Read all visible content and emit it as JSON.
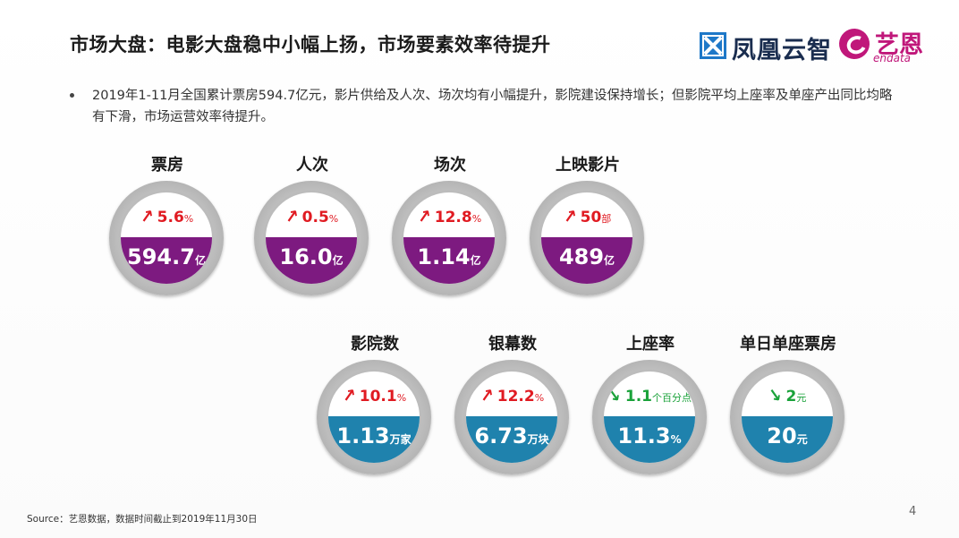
{
  "header": {
    "title": "市场大盘：电影大盘稳中小幅上扬，市场要素效率待提升",
    "logo_fenghuang": "凤凰云智",
    "logo_yien_cn": "艺恩",
    "logo_yien_en": "endata"
  },
  "bullet": {
    "text": "2019年1-11月全国累计票房594.7亿元，影片供给及人次、场次均有小幅提升，影院建设保持增长；但影院平均上座率及单座产出同比均略有下滑，市场运营效率待提升。"
  },
  "metrics": [
    {
      "label": "票房",
      "change": "5.6",
      "change_unit": "%",
      "direction": "up",
      "value": "594.7",
      "value_unit": "亿",
      "color": "#7d1a80"
    },
    {
      "label": "人次",
      "change": "0.5",
      "change_unit": "%",
      "direction": "up",
      "value": "16.0",
      "value_unit": "亿",
      "color": "#7d1a80"
    },
    {
      "label": "场次",
      "change": "12.8",
      "change_unit": "%",
      "direction": "up",
      "value": "1.14",
      "value_unit": "亿",
      "color": "#7d1a80"
    },
    {
      "label": "上映影片",
      "change": "50",
      "change_unit": "部",
      "direction": "up",
      "value": "489",
      "value_unit": "亿",
      "color": "#7d1a80"
    },
    {
      "label": "影院数",
      "change": "10.1",
      "change_unit": "%",
      "direction": "up",
      "value": "1.13",
      "value_unit": "万家",
      "color": "#1f82ad"
    },
    {
      "label": "银幕数",
      "change": "12.2",
      "change_unit": "%",
      "direction": "up",
      "value": "6.73",
      "value_unit": "万块",
      "color": "#1f82ad"
    },
    {
      "label": "上座率",
      "change": "1.1",
      "change_unit": "个百分点",
      "direction": "down",
      "value": "11.3",
      "value_unit": "%",
      "color": "#1f82ad"
    },
    {
      "label": "单日单座票房",
      "change": "2",
      "change_unit": "元",
      "direction": "down",
      "value": "20",
      "value_unit": "元",
      "color": "#1f82ad"
    }
  ],
  "footer": {
    "source": "Source：艺恩数据，数据时间截止到2019年11月30日",
    "page_number": "4"
  }
}
